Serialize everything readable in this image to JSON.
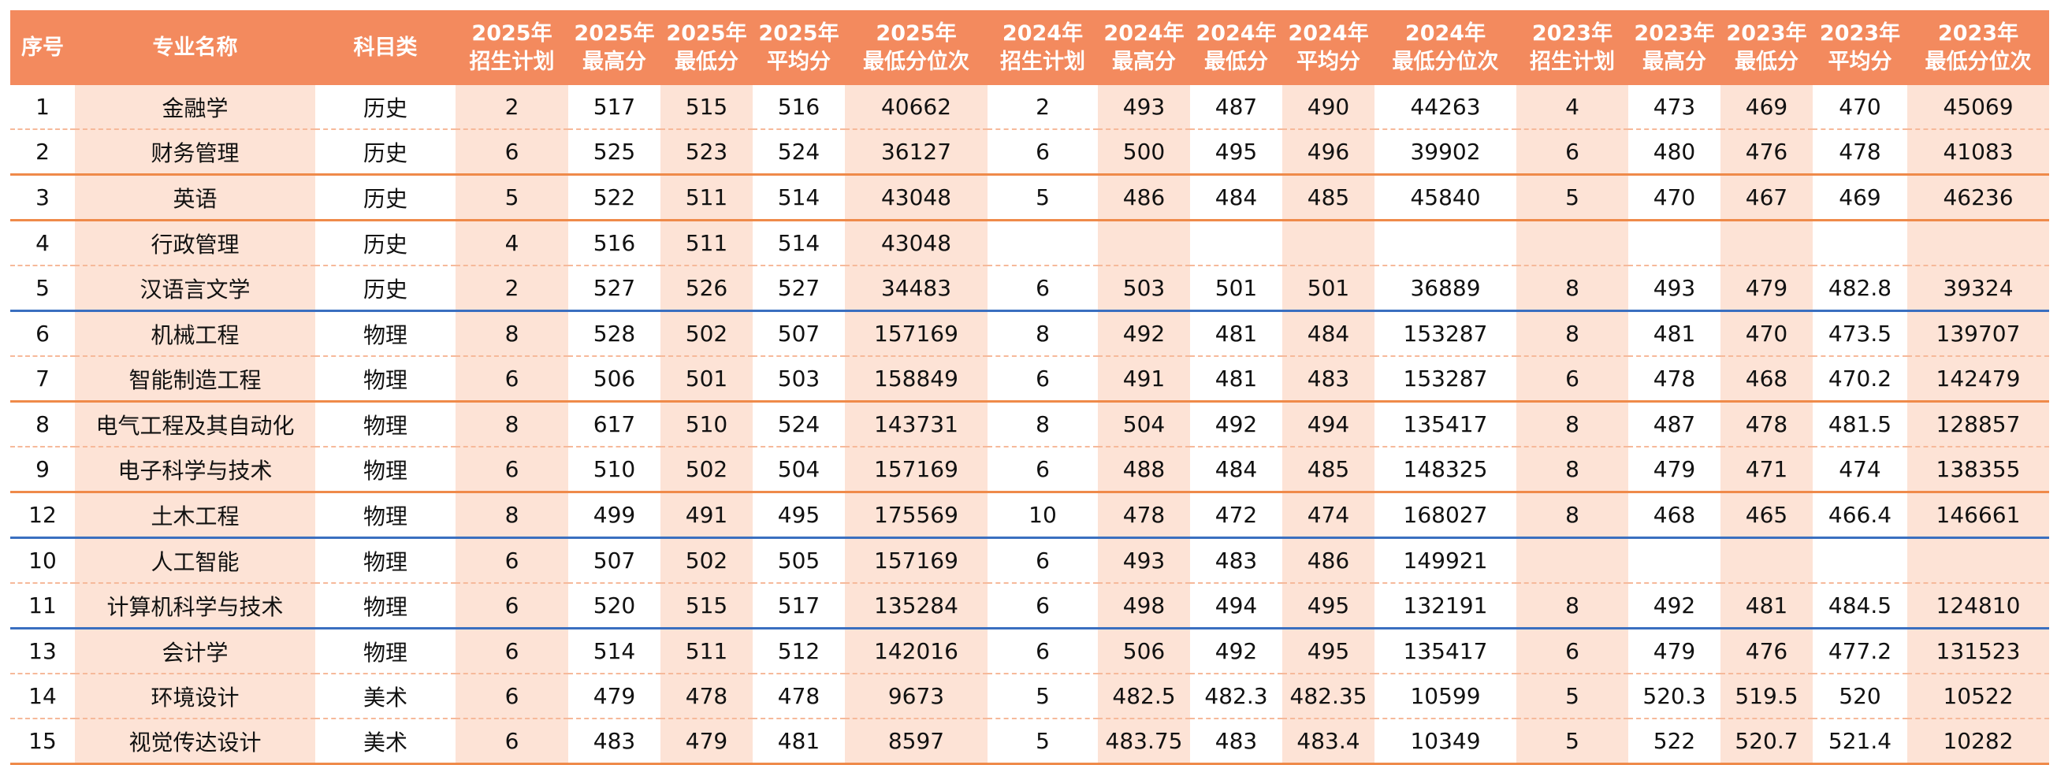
{
  "table": {
    "header": [
      [
        "序号"
      ],
      [
        "专业名称"
      ],
      [
        "科目类"
      ],
      [
        "2025年",
        "招生计划"
      ],
      [
        "2025年",
        "最高分"
      ],
      [
        "2025年",
        "最低分"
      ],
      [
        "2025年",
        "平均分"
      ],
      [
        "2025年",
        "最低分位次"
      ],
      [
        "2024年",
        "招生计划"
      ],
      [
        "2024年",
        "最高分"
      ],
      [
        "2024年",
        "最低分"
      ],
      [
        "2024年",
        "平均分"
      ],
      [
        "2024年",
        "最低分位次"
      ],
      [
        "2023年",
        "招生计划"
      ],
      [
        "2023年",
        "最高分"
      ],
      [
        "2023年",
        "最低分"
      ],
      [
        "2023年",
        "平均分"
      ],
      [
        "2023年",
        "最低分位次"
      ]
    ],
    "rows": [
      [
        1,
        "金融学",
        "历史",
        2,
        517,
        515,
        516,
        40662,
        2,
        493,
        487,
        490,
        44263,
        4,
        473,
        469,
        470,
        45069
      ],
      [
        2,
        "财务管理",
        "历史",
        6,
        525,
        523,
        524,
        36127,
        6,
        500,
        495,
        496,
        39902,
        6,
        480,
        476,
        478,
        41083
      ],
      [
        3,
        "英语",
        "历史",
        5,
        522,
        511,
        514,
        43048,
        5,
        486,
        484,
        485,
        45840,
        5,
        470,
        467,
        469,
        46236
      ],
      [
        4,
        "行政管理",
        "历史",
        4,
        516,
        511,
        514,
        43048,
        null,
        null,
        null,
        null,
        null,
        null,
        null,
        null,
        null,
        null
      ],
      [
        5,
        "汉语言文学",
        "历史",
        2,
        527,
        526,
        527,
        34483,
        6,
        503,
        501,
        501,
        36889,
        8,
        493,
        479,
        482.8,
        39324
      ],
      [
        6,
        "机械工程",
        "物理",
        8,
        528,
        502,
        507,
        157169,
        8,
        492,
        481,
        484,
        153287,
        8,
        481,
        470,
        473.5,
        139707
      ],
      [
        7,
        "智能制造工程",
        "物理",
        6,
        506,
        501,
        503,
        158849,
        6,
        491,
        481,
        483,
        153287,
        6,
        478,
        468,
        470.2,
        142479
      ],
      [
        8,
        "电气工程及其自动化",
        "物理",
        8,
        617,
        510,
        524,
        143731,
        8,
        504,
        492,
        494,
        135417,
        8,
        487,
        478,
        481.5,
        128857
      ],
      [
        9,
        "电子科学与技术",
        "物理",
        6,
        510,
        502,
        504,
        157169,
        6,
        488,
        484,
        485,
        148325,
        8,
        479,
        471,
        474,
        138355
      ],
      [
        12,
        "土木工程",
        "物理",
        8,
        499,
        491,
        495,
        175569,
        10,
        478,
        472,
        474,
        168027,
        8,
        468,
        465,
        466.4,
        146661
      ],
      [
        10,
        "人工智能",
        "物理",
        6,
        507,
        502,
        505,
        157169,
        6,
        493,
        483,
        486,
        149921,
        null,
        null,
        null,
        null,
        null
      ],
      [
        11,
        "计算机科学与技术",
        "物理",
        6,
        520,
        515,
        517,
        135284,
        6,
        498,
        494,
        495,
        132191,
        8,
        492,
        481,
        484.5,
        124810
      ],
      [
        13,
        "会计学",
        "物理",
        6,
        514,
        511,
        512,
        142016,
        6,
        506,
        492,
        495,
        135417,
        6,
        479,
        476,
        477.2,
        131523
      ],
      [
        14,
        "环境设计",
        "美术",
        6,
        479,
        478,
        478,
        9673,
        5,
        482.5,
        482.3,
        482.35,
        10599,
        5,
        520.3,
        519.5,
        520,
        10522
      ],
      [
        15,
        "视觉传达设计",
        "美术",
        6,
        483,
        479,
        481,
        8597,
        5,
        483.75,
        483,
        483.4,
        10349,
        5,
        522,
        520.7,
        521.4,
        10282
      ]
    ]
  }
}
